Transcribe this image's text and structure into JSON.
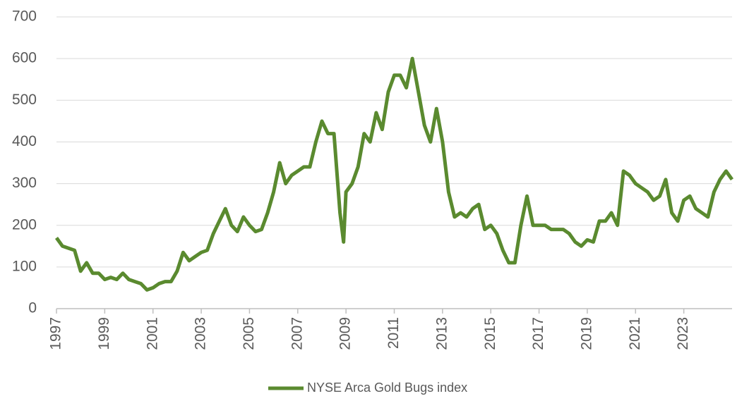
{
  "chart_data": {
    "type": "line",
    "x": [
      1997.0,
      1997.25,
      1997.5,
      1997.75,
      1998.0,
      1998.25,
      1998.5,
      1998.75,
      1999.0,
      1999.25,
      1999.5,
      1999.75,
      2000.0,
      2000.25,
      2000.5,
      2000.75,
      2001.0,
      2001.25,
      2001.5,
      2001.75,
      2002.0,
      2002.25,
      2002.5,
      2002.75,
      2003.0,
      2003.25,
      2003.5,
      2003.75,
      2004.0,
      2004.25,
      2004.5,
      2004.75,
      2005.0,
      2005.25,
      2005.5,
      2005.75,
      2006.0,
      2006.25,
      2006.5,
      2006.75,
      2007.0,
      2007.25,
      2007.5,
      2007.75,
      2008.0,
      2008.25,
      2008.5,
      2008.75,
      2008.9,
      2009.0,
      2009.25,
      2009.5,
      2009.75,
      2010.0,
      2010.25,
      2010.5,
      2010.75,
      2011.0,
      2011.25,
      2011.5,
      2011.75,
      2012.0,
      2012.25,
      2012.5,
      2012.75,
      2013.0,
      2013.25,
      2013.5,
      2013.75,
      2014.0,
      2014.25,
      2014.5,
      2014.75,
      2015.0,
      2015.25,
      2015.5,
      2015.75,
      2016.0,
      2016.25,
      2016.5,
      2016.75,
      2017.0,
      2017.25,
      2017.5,
      2017.75,
      2018.0,
      2018.25,
      2018.5,
      2018.75,
      2019.0,
      2019.25,
      2019.5,
      2019.75,
      2020.0,
      2020.25,
      2020.5,
      2020.75,
      2021.0,
      2021.25,
      2021.5,
      2021.75,
      2022.0,
      2022.25,
      2022.5,
      2022.75,
      2023.0,
      2023.25,
      2023.5,
      2023.75,
      2024.0,
      2024.25,
      2024.5,
      2024.75,
      2025.0
    ],
    "series": [
      {
        "name": "NYSE Arca Gold Bugs index",
        "color": "#5a8a2f",
        "values": [
          170,
          150,
          145,
          140,
          90,
          110,
          85,
          85,
          70,
          75,
          70,
          85,
          70,
          65,
          60,
          45,
          50,
          60,
          65,
          65,
          90,
          135,
          115,
          125,
          135,
          140,
          180,
          210,
          240,
          200,
          185,
          220,
          200,
          185,
          190,
          230,
          280,
          350,
          300,
          320,
          330,
          340,
          340,
          400,
          450,
          420,
          420,
          230,
          160,
          280,
          300,
          340,
          420,
          400,
          470,
          430,
          520,
          560,
          560,
          530,
          600,
          520,
          440,
          400,
          480,
          400,
          280,
          220,
          230,
          220,
          240,
          250,
          190,
          200,
          180,
          140,
          110,
          110,
          200,
          270,
          200,
          200,
          200,
          190,
          190,
          190,
          180,
          160,
          150,
          165,
          160,
          210,
          210,
          230,
          200,
          330,
          320,
          300,
          290,
          280,
          260,
          270,
          310,
          230,
          210,
          260,
          270,
          240,
          230,
          220,
          280,
          310,
          330,
          310
        ]
      }
    ],
    "xlim": [
      1997,
      2025
    ],
    "xticks": [
      1997,
      1999,
      2001,
      2003,
      2005,
      2007,
      2009,
      2011,
      2013,
      2015,
      2017,
      2019,
      2021,
      2023
    ],
    "ylim": [
      0,
      700
    ],
    "yticks": [
      0,
      100,
      200,
      300,
      400,
      500,
      600,
      700
    ],
    "grid": true,
    "legend": "bottom"
  }
}
